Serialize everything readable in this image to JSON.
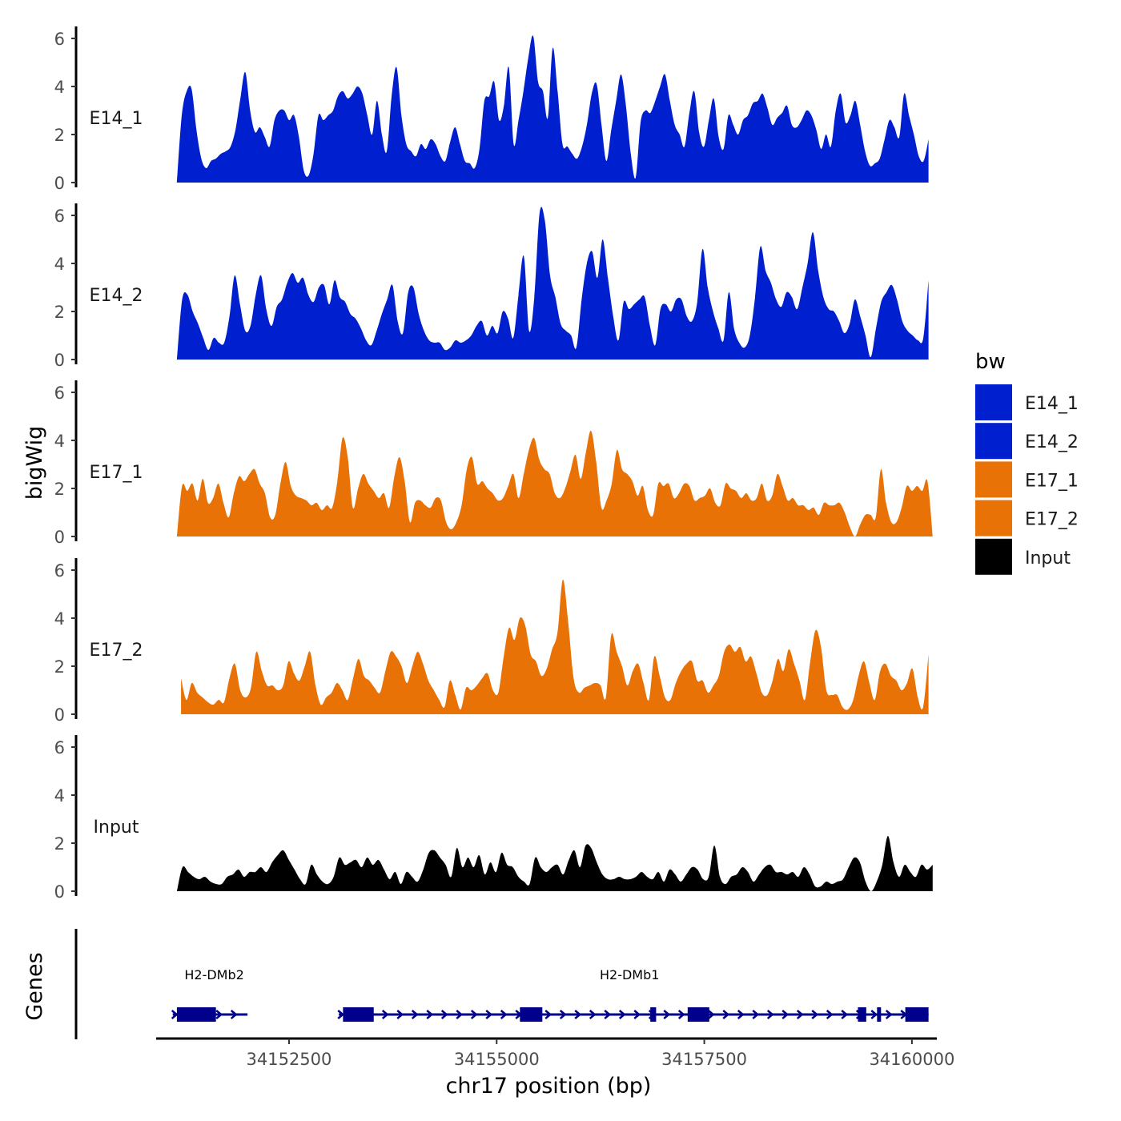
{
  "chart_data": {
    "type": "area",
    "title": "",
    "ylabel": "bigWig",
    "xlabel": "chr17 position (bp)",
    "xlim": [
      34150900,
      34160300
    ],
    "ylim": [
      0,
      6.5
    ],
    "x_ticks": [
      34152500,
      34155000,
      34157500,
      34160000
    ],
    "y_ticks": [
      0,
      2,
      4,
      6
    ],
    "legend": {
      "title": "bw",
      "position": "right",
      "entries": [
        {
          "label": "E14_1",
          "color": "#0020CF"
        },
        {
          "label": "E14_2",
          "color": "#0020CF"
        },
        {
          "label": "E17_1",
          "color": "#E87206"
        },
        {
          "label": "E17_2",
          "color": "#E87206"
        },
        {
          "label": "Input",
          "color": "#000000"
        }
      ]
    },
    "series": [
      {
        "name": "E14_1",
        "color": "#0020CF",
        "x_start": 34151150,
        "x_end": 34160200,
        "values": [
          0.0,
          2.8,
          3.8,
          3.9,
          2.2,
          1.0,
          0.6,
          0.9,
          1.0,
          1.2,
          1.3,
          1.5,
          2.2,
          3.5,
          4.6,
          3.0,
          2.1,
          2.3,
          1.9,
          1.5,
          2.6,
          3.0,
          3.0,
          2.6,
          2.8,
          1.9,
          0.5,
          0.3,
          1.2,
          2.8,
          2.6,
          2.8,
          3.0,
          3.6,
          3.8,
          3.5,
          3.7,
          4.0,
          3.7,
          2.8,
          2.0,
          3.4,
          2.0,
          1.3,
          3.6,
          4.8,
          2.8,
          1.6,
          1.3,
          1.1,
          1.6,
          1.4,
          1.8,
          1.6,
          1.1,
          0.9,
          1.7,
          2.3,
          1.6,
          0.9,
          0.8,
          0.6,
          1.4,
          3.4,
          3.6,
          4.2,
          2.6,
          3.2,
          4.8,
          1.6,
          2.6,
          3.8,
          5.2,
          6.1,
          4.2,
          3.8,
          2.7,
          5.6,
          3.8,
          1.6,
          1.5,
          1.2,
          1.0,
          1.5,
          2.4,
          3.7,
          4.1,
          2.4,
          0.9,
          2.2,
          3.4,
          4.5,
          3.2,
          1.2,
          0.2,
          2.5,
          3.0,
          2.9,
          3.4,
          4.0,
          4.5,
          3.4,
          2.4,
          2.0,
          1.5,
          2.9,
          3.8,
          2.1,
          1.5,
          2.6,
          3.5,
          1.9,
          1.4,
          2.8,
          2.4,
          2.0,
          2.6,
          2.8,
          3.3,
          3.4,
          3.7,
          3.1,
          2.4,
          2.7,
          2.9,
          3.2,
          2.4,
          2.3,
          2.6,
          3.0,
          2.8,
          2.2,
          1.4,
          2.0,
          1.5,
          3.0,
          3.7,
          2.5,
          2.8,
          3.4,
          2.4,
          1.3,
          0.7,
          0.8,
          1.0,
          1.8,
          2.6,
          2.3,
          1.9,
          3.7,
          2.8,
          2.0,
          1.1,
          0.9,
          1.8
        ]
      },
      {
        "name": "E14_2",
        "color": "#0020CF",
        "x_start": 34151150,
        "x_end": 34160200,
        "values": [
          0.0,
          2.5,
          2.7,
          2.0,
          1.5,
          0.9,
          0.4,
          0.9,
          0.7,
          0.7,
          1.8,
          3.5,
          2.3,
          1.2,
          1.4,
          2.7,
          3.5,
          2.1,
          1.4,
          2.2,
          2.5,
          3.2,
          3.6,
          3.2,
          3.4,
          2.7,
          2.4,
          3.0,
          3.1,
          2.3,
          3.3,
          2.6,
          2.4,
          1.9,
          1.7,
          1.3,
          0.8,
          0.6,
          1.2,
          1.9,
          2.5,
          3.1,
          1.6,
          1.1,
          2.8,
          3.0,
          1.9,
          1.2,
          0.8,
          0.7,
          0.7,
          0.4,
          0.5,
          0.8,
          0.7,
          0.8,
          1.0,
          1.4,
          1.6,
          1.0,
          1.4,
          1.1,
          2.0,
          1.7,
          0.9,
          2.7,
          4.3,
          1.2,
          2.6,
          6.1,
          5.8,
          3.5,
          2.6,
          1.5,
          1.2,
          1.0,
          0.5,
          2.5,
          4.0,
          4.5,
          3.4,
          5.0,
          3.4,
          1.8,
          0.8,
          2.4,
          2.1,
          2.3,
          2.5,
          2.6,
          1.4,
          0.6,
          2.1,
          2.3,
          2.0,
          2.5,
          2.5,
          1.8,
          1.6,
          2.4,
          4.6,
          3.0,
          2.0,
          1.3,
          0.8,
          2.8,
          1.3,
          0.7,
          0.5,
          1.0,
          2.6,
          4.7,
          3.7,
          3.2,
          2.5,
          2.2,
          2.8,
          2.6,
          2.1,
          3.0,
          4.0,
          5.3,
          3.7,
          2.6,
          2.1,
          2.0,
          1.6,
          1.1,
          1.5,
          2.5,
          1.8,
          1.0,
          0.1,
          1.3,
          2.4,
          2.8,
          3.1,
          2.5,
          1.6,
          1.2,
          1.0,
          0.8,
          0.9,
          3.3
        ]
      },
      {
        "name": "E17_1",
        "color": "#E87206",
        "x_start": 34151150,
        "x_end": 34160250,
        "values": [
          0.0,
          2.1,
          1.9,
          2.2,
          1.5,
          2.4,
          1.4,
          1.6,
          2.2,
          1.4,
          0.8,
          1.8,
          2.5,
          2.3,
          2.6,
          2.8,
          2.2,
          1.8,
          0.8,
          0.9,
          2.2,
          3.1,
          2.1,
          1.7,
          1.6,
          1.5,
          1.3,
          1.4,
          1.1,
          1.3,
          1.2,
          2.3,
          4.1,
          3.3,
          1.2,
          2.0,
          2.6,
          2.2,
          1.9,
          1.6,
          1.8,
          1.2,
          2.5,
          3.3,
          2.3,
          0.6,
          1.4,
          1.5,
          1.3,
          1.2,
          1.6,
          1.5,
          0.6,
          0.3,
          0.6,
          1.3,
          2.8,
          3.3,
          2.2,
          2.3,
          2.0,
          1.8,
          1.5,
          1.6,
          2.1,
          2.6,
          1.6,
          2.6,
          3.6,
          4.1,
          3.2,
          2.8,
          2.6,
          1.8,
          1.6,
          2.0,
          2.7,
          3.4,
          2.4,
          3.5,
          4.4,
          3.1,
          1.2,
          1.5,
          2.2,
          3.6,
          2.8,
          2.6,
          2.3,
          1.7,
          2.1,
          1.1,
          0.9,
          2.2,
          2.1,
          2.2,
          1.6,
          1.8,
          2.2,
          2.1,
          1.5,
          1.6,
          1.7,
          2.0,
          1.4,
          1.3,
          2.2,
          2.0,
          1.9,
          1.6,
          1.8,
          1.5,
          1.6,
          2.2,
          1.5,
          1.7,
          2.6,
          2.1,
          1.5,
          1.6,
          1.3,
          1.3,
          1.1,
          1.2,
          0.9,
          1.4,
          1.3,
          1.3,
          1.4,
          1.0,
          0.4,
          0.0,
          0.5,
          0.9,
          0.9,
          0.8,
          2.8,
          1.4,
          0.6,
          0.6,
          1.2,
          2.1,
          1.9,
          2.1,
          1.9,
          2.3,
          0.0
        ]
      },
      {
        "name": "E17_2",
        "color": "#E87206",
        "x_start": 34151200,
        "x_end": 34160200,
        "values": [
          1.5,
          0.6,
          1.3,
          0.9,
          0.7,
          0.5,
          0.4,
          0.6,
          0.5,
          1.5,
          2.1,
          1.0,
          0.7,
          1.1,
          2.6,
          1.8,
          1.2,
          1.2,
          1.0,
          1.2,
          2.2,
          1.7,
          1.4,
          2.0,
          2.6,
          1.2,
          0.4,
          0.7,
          0.9,
          1.3,
          1.0,
          0.6,
          1.5,
          2.3,
          1.6,
          1.4,
          1.1,
          0.9,
          1.8,
          2.6,
          2.4,
          2.0,
          1.3,
          2.0,
          2.6,
          2.1,
          1.4,
          1.0,
          0.6,
          0.3,
          1.4,
          0.8,
          0.2,
          1.1,
          1.0,
          1.2,
          1.5,
          1.7,
          1.0,
          0.9,
          2.4,
          3.6,
          3.1,
          4.0,
          3.7,
          2.5,
          2.2,
          1.6,
          1.9,
          2.7,
          3.4,
          5.6,
          3.8,
          1.5,
          0.9,
          1.1,
          1.2,
          1.3,
          1.2,
          0.7,
          3.3,
          2.6,
          2.0,
          1.2,
          1.8,
          2.1,
          1.3,
          0.6,
          2.4,
          1.6,
          0.7,
          0.6,
          1.3,
          1.8,
          2.1,
          2.2,
          1.4,
          1.4,
          0.9,
          1.2,
          1.6,
          2.6,
          2.9,
          2.6,
          2.8,
          2.2,
          2.4,
          1.7,
          0.9,
          0.8,
          1.4,
          2.3,
          1.8,
          2.7,
          2.1,
          1.4,
          0.6,
          2.2,
          3.5,
          2.8,
          1.0,
          0.8,
          0.8,
          0.3,
          0.2,
          0.6,
          1.6,
          2.2,
          1.3,
          0.6,
          1.8,
          2.1,
          1.6,
          1.4,
          1.0,
          1.3,
          1.9,
          0.7,
          0.3,
          2.5
        ]
      },
      {
        "name": "Input",
        "color": "#000000",
        "x_start": 34151150,
        "x_end": 34160250,
        "values": [
          0.0,
          1.0,
          0.8,
          0.6,
          0.5,
          0.6,
          0.4,
          0.3,
          0.3,
          0.6,
          0.7,
          0.9,
          0.6,
          0.8,
          0.8,
          1.0,
          0.8,
          1.2,
          1.5,
          1.7,
          1.3,
          0.9,
          0.5,
          0.3,
          1.1,
          0.7,
          0.4,
          0.3,
          0.6,
          1.4,
          1.1,
          1.2,
          1.3,
          1.0,
          1.4,
          1.1,
          1.3,
          0.9,
          0.5,
          0.8,
          0.3,
          0.8,
          0.6,
          0.4,
          0.9,
          1.6,
          1.7,
          1.4,
          1.1,
          0.6,
          1.8,
          1.0,
          1.4,
          1.0,
          1.5,
          0.7,
          1.2,
          0.8,
          1.6,
          1.1,
          1.0,
          0.6,
          0.4,
          0.3,
          1.4,
          1.0,
          0.8,
          1.0,
          1.1,
          0.7,
          1.3,
          1.7,
          1.0,
          1.9,
          1.8,
          1.2,
          0.7,
          0.5,
          0.5,
          0.6,
          0.5,
          0.5,
          0.6,
          0.8,
          0.6,
          0.5,
          0.8,
          0.4,
          0.9,
          0.7,
          0.4,
          0.7,
          1.0,
          0.9,
          0.5,
          0.6,
          1.9,
          0.6,
          0.3,
          0.6,
          0.7,
          1.0,
          0.8,
          0.4,
          0.7,
          1.0,
          1.1,
          0.8,
          0.8,
          0.7,
          0.8,
          0.6,
          1.0,
          0.7,
          0.2,
          0.2,
          0.4,
          0.3,
          0.4,
          0.5,
          1.0,
          1.4,
          1.2,
          0.4,
          0.0,
          0.4,
          1.1,
          2.3,
          1.2,
          0.6,
          1.1,
          0.8,
          0.6,
          1.1,
          0.9,
          1.1
        ]
      }
    ],
    "genes": {
      "title": "Genes",
      "color": "#00008B",
      "items": [
        {
          "name": "H2-DMb2",
          "start": 34151100,
          "end": 34152000,
          "label_x": 34151600,
          "exons": [
            [
              34151150,
              34151620
            ]
          ]
        },
        {
          "name": "H2-DMb1",
          "start": 34153100,
          "end": 34160200,
          "label_x": 34156600,
          "exons": [
            [
              34153150,
              34153520
            ],
            [
              34155280,
              34155550
            ],
            [
              34156850,
              34156920
            ],
            [
              34157300,
              34157560
            ],
            [
              34159350,
              34159450
            ],
            [
              34159580,
              34159620
            ],
            [
              34159920,
              34160200
            ]
          ]
        }
      ]
    }
  }
}
